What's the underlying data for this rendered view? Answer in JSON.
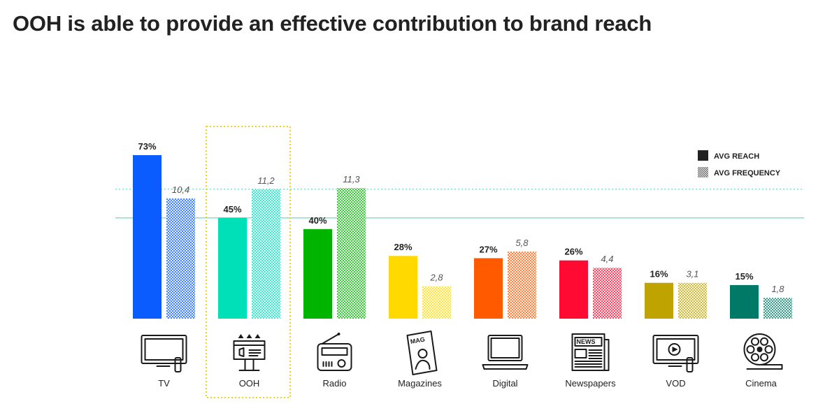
{
  "title": "OOH is able to provide an effective contribution to brand reach",
  "chart_data": {
    "type": "bar",
    "categories": [
      "TV",
      "OOH",
      "Radio",
      "Magazines",
      "Digital",
      "Newspapers",
      "VOD",
      "Cinema"
    ],
    "series": [
      {
        "name": "AVG REACH",
        "values": [
          73,
          45,
          40,
          28,
          27,
          26,
          16,
          15
        ],
        "labels": [
          "73%",
          "45%",
          "40%",
          "28%",
          "27%",
          "26%",
          "16%",
          "15%"
        ],
        "style": "solid"
      },
      {
        "name": "AVG FREQUENCY",
        "values": [
          10.4,
          11.2,
          11.3,
          2.8,
          5.8,
          4.4,
          3.1,
          1.8
        ],
        "labels": [
          "10,4",
          "11,2",
          "11,3",
          "2,8",
          "5,8",
          "4,4",
          "3,1",
          "1,8"
        ],
        "style": "pattern"
      }
    ],
    "category_colors": [
      "#0a5cff",
      "#00e0b8",
      "#00b400",
      "#ffd900",
      "#ff5a00",
      "#ff0a32",
      "#bfa300",
      "#007a66"
    ],
    "highlighted_category": "OOH",
    "reference_lines": [
      {
        "series": "AVG REACH",
        "value": 45,
        "style": "solid",
        "color": "#7fe3cf"
      },
      {
        "series": "AVG FREQUENCY",
        "value": 11.2,
        "style": "dotted",
        "color": "#7fe3cf"
      }
    ],
    "legend_position": "top-right",
    "icons": [
      "tv-icon",
      "billboard-icon",
      "radio-icon",
      "magazine-icon",
      "laptop-icon",
      "newspaper-icon",
      "vod-tv-icon",
      "film-reel-icon"
    ],
    "icon_texts": {
      "magazine": "MAG",
      "newspaper": "NEWS"
    }
  }
}
